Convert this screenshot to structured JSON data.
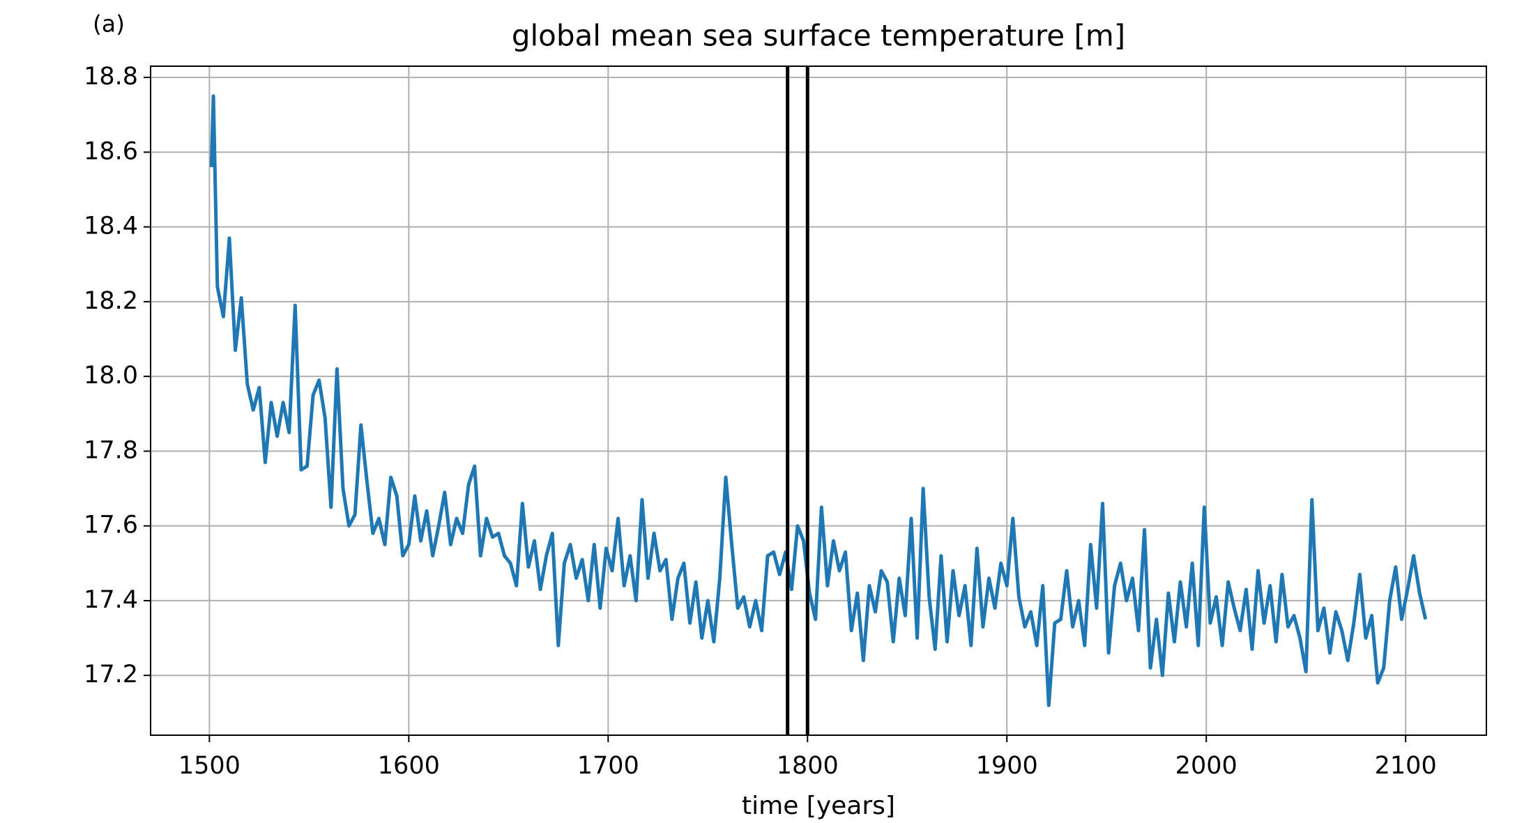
{
  "chart_data": {
    "type": "line",
    "panel_label": "(a)",
    "title": "global mean sea surface temperature [m]",
    "xlabel": "time [years]",
    "xlim": [
      1470.5,
      2140.5
    ],
    "ylim": [
      17.04,
      18.83
    ],
    "xticks": [
      1500,
      1600,
      1700,
      1800,
      1900,
      2000,
      2100
    ],
    "yticks": [
      17.2,
      17.4,
      17.6,
      17.8,
      {
        "value": 18,
        "label": "18.0"
      },
      18.2,
      18.4,
      18.6,
      18.8
    ],
    "grid": true,
    "color": "#1f77b4",
    "vlines": [
      1790,
      1800
    ],
    "vline_color": "#000000",
    "x": [
      1501,
      1502,
      1504,
      1507,
      1510,
      1513,
      1516,
      1519,
      1522,
      1525,
      1528,
      1531,
      1534,
      1537,
      1540,
      1543,
      1546,
      1549,
      1552,
      1555,
      1558,
      1561,
      1564,
      1567,
      1570,
      1573,
      1576,
      1579,
      1582,
      1585,
      1588,
      1591,
      1594,
      1597,
      1600,
      1603,
      1606,
      1609,
      1612,
      1615,
      1618,
      1621,
      1624,
      1627,
      1630,
      1633,
      1636,
      1639,
      1642,
      1645,
      1648,
      1651,
      1654,
      1657,
      1660,
      1663,
      1666,
      1669,
      1672,
      1675,
      1678,
      1681,
      1684,
      1687,
      1690,
      1693,
      1696,
      1699,
      1702,
      1705,
      1708,
      1711,
      1714,
      1717,
      1720,
      1723,
      1726,
      1729,
      1732,
      1735,
      1738,
      1741,
      1744,
      1747,
      1750,
      1753,
      1756,
      1759,
      1762,
      1765,
      1768,
      1771,
      1774,
      1777,
      1780,
      1783,
      1786,
      1789,
      1792,
      1795,
      1798,
      1801,
      1804,
      1807,
      1810,
      1813,
      1816,
      1819,
      1822,
      1825,
      1828,
      1831,
      1834,
      1837,
      1840,
      1843,
      1846,
      1849,
      1852,
      1855,
      1858,
      1861,
      1864,
      1867,
      1870,
      1873,
      1876,
      1879,
      1882,
      1885,
      1888,
      1891,
      1894,
      1897,
      1900,
      1903,
      1906,
      1909,
      1912,
      1915,
      1918,
      1921,
      1924,
      1927,
      1930,
      1933,
      1936,
      1939,
      1942,
      1945,
      1948,
      1951,
      1954,
      1957,
      1960,
      1963,
      1966,
      1969,
      1972,
      1975,
      1978,
      1981,
      1984,
      1987,
      1990,
      1993,
      1996,
      1999,
      2002,
      2005,
      2008,
      2011,
      2014,
      2017,
      2020,
      2023,
      2026,
      2029,
      2032,
      2035,
      2038,
      2041,
      2044,
      2047,
      2050,
      2053,
      2056,
      2059,
      2062,
      2065,
      2068,
      2071,
      2074,
      2077,
      2080,
      2083,
      2086,
      2089,
      2092,
      2095,
      2098,
      2101,
      2104,
      2107,
      2110
    ],
    "values": [
      18.56,
      18.75,
      18.24,
      18.16,
      18.37,
      18.07,
      18.21,
      17.98,
      17.91,
      17.97,
      17.77,
      17.93,
      17.84,
      17.93,
      17.85,
      18.19,
      17.75,
      17.76,
      17.95,
      17.99,
      17.89,
      17.65,
      18.02,
      17.7,
      17.6,
      17.63,
      17.87,
      17.72,
      17.58,
      17.62,
      17.55,
      17.73,
      17.68,
      17.52,
      17.55,
      17.68,
      17.56,
      17.64,
      17.52,
      17.6,
      17.69,
      17.55,
      17.62,
      17.58,
      17.71,
      17.76,
      17.52,
      17.62,
      17.57,
      17.58,
      17.52,
      17.5,
      17.44,
      17.66,
      17.49,
      17.56,
      17.43,
      17.52,
      17.58,
      17.28,
      17.5,
      17.55,
      17.46,
      17.51,
      17.4,
      17.55,
      17.38,
      17.54,
      17.48,
      17.62,
      17.44,
      17.52,
      17.4,
      17.67,
      17.46,
      17.58,
      17.48,
      17.51,
      17.35,
      17.46,
      17.5,
      17.34,
      17.45,
      17.3,
      17.4,
      17.29,
      17.46,
      17.73,
      17.55,
      17.38,
      17.41,
      17.33,
      17.4,
      17.32,
      17.52,
      17.53,
      17.47,
      17.53,
      17.43,
      17.6,
      17.56,
      17.42,
      17.35,
      17.65,
      17.44,
      17.56,
      17.48,
      17.53,
      17.32,
      17.42,
      17.24,
      17.44,
      17.37,
      17.48,
      17.45,
      17.29,
      17.46,
      17.36,
      17.62,
      17.3,
      17.7,
      17.41,
      17.27,
      17.52,
      17.29,
      17.48,
      17.36,
      17.44,
      17.28,
      17.54,
      17.33,
      17.46,
      17.38,
      17.5,
      17.44,
      17.62,
      17.41,
      17.33,
      17.37,
      17.28,
      17.44,
      17.12,
      17.34,
      17.35,
      17.48,
      17.33,
      17.4,
      17.28,
      17.55,
      17.38,
      17.66,
      17.26,
      17.44,
      17.5,
      17.4,
      17.46,
      17.32,
      17.59,
      17.22,
      17.35,
      17.2,
      17.42,
      17.29,
      17.45,
      17.33,
      17.5,
      17.28,
      17.65,
      17.34,
      17.41,
      17.28,
      17.45,
      17.38,
      17.32,
      17.43,
      17.27,
      17.48,
      17.34,
      17.44,
      17.29,
      17.47,
      17.33,
      17.36,
      17.3,
      17.21,
      17.67,
      17.32,
      17.38,
      17.26,
      17.37,
      17.32,
      17.24,
      17.34,
      17.47,
      17.3,
      17.36,
      17.18,
      17.22,
      17.4,
      17.49,
      17.35,
      17.43,
      17.52,
      17.42,
      17.35
    ]
  }
}
